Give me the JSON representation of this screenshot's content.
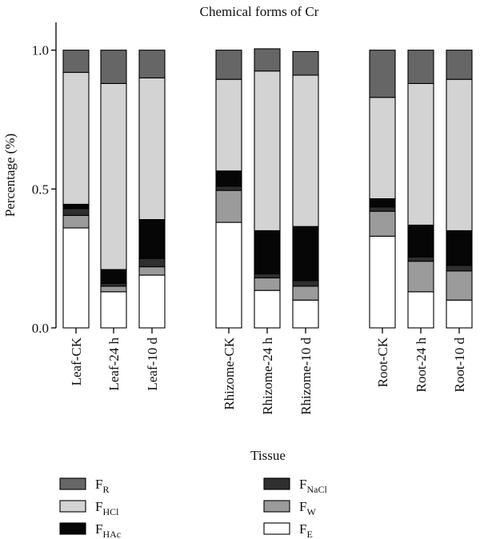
{
  "chart_data": {
    "type": "bar",
    "stacked": true,
    "title": "Chemical forms of Cr",
    "xlabel": "Tissue",
    "ylabel": "Percentage (%)",
    "ylim": [
      0,
      1.1
    ],
    "yticks": [
      "0.0",
      "0.5",
      "1.0"
    ],
    "categories": [
      "Leaf-CK",
      "Leaf-24 h",
      "Leaf-10 d",
      "Rhizome-CK",
      "Rhizome-24 h",
      "Rhizome-10 d",
      "Root-CK",
      "Root-24 h",
      "Root-10 d"
    ],
    "series": [
      {
        "key": "FE",
        "base": "F",
        "sub": "E",
        "color": "#ffffff",
        "values": [
          0.36,
          0.13,
          0.19,
          0.38,
          0.135,
          0.1,
          0.33,
          0.13,
          0.1
        ]
      },
      {
        "key": "FW",
        "base": "F",
        "sub": "W",
        "color": "#9b9b9b",
        "values": [
          0.045,
          0.02,
          0.03,
          0.115,
          0.045,
          0.05,
          0.09,
          0.11,
          0.105
        ]
      },
      {
        "key": "FNaCl",
        "base": "F",
        "sub": "NaCl",
        "color": "#2f2f2f",
        "values": [
          0.025,
          0.01,
          0.03,
          0.015,
          0.015,
          0.02,
          0.015,
          0.015,
          0.02
        ]
      },
      {
        "key": "FHAc",
        "base": "F",
        "sub": "HAc",
        "color": "#060606",
        "values": [
          0.015,
          0.05,
          0.14,
          0.055,
          0.155,
          0.195,
          0.03,
          0.115,
          0.125
        ]
      },
      {
        "key": "FHCl",
        "base": "F",
        "sub": "HCl",
        "color": "#d3d3d3",
        "values": [
          0.475,
          0.67,
          0.51,
          0.33,
          0.575,
          0.545,
          0.365,
          0.51,
          0.545
        ]
      },
      {
        "key": "FR",
        "base": "F",
        "sub": "R",
        "color": "#666666",
        "values": [
          0.08,
          0.12,
          0.1,
          0.105,
          0.08,
          0.085,
          0.17,
          0.12,
          0.105
        ]
      }
    ],
    "legend": {
      "left": [
        "FR",
        "FHCl",
        "FHAc"
      ],
      "right": [
        "FNaCl",
        "FW",
        "FE"
      ]
    }
  }
}
